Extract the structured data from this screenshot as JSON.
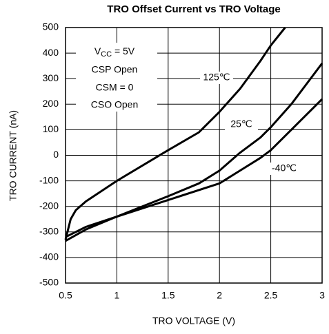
{
  "chart_data": {
    "type": "line",
    "title": "TRO Offset Current vs TRO Voltage",
    "x_label": "TRO VOLTAGE (V)",
    "y_label": "TRO CURRENT (nA)",
    "xlim": [
      0.5,
      3
    ],
    "xticks": [
      0.5,
      1,
      1.5,
      2,
      2.5,
      3
    ],
    "ylim": [
      -500,
      500
    ],
    "yticks": [
      -500,
      -400,
      -300,
      -200,
      -100,
      0,
      100,
      200,
      300,
      400,
      500
    ],
    "grid": true,
    "conditions": {
      "vcc": {
        "symbol": "V",
        "subscript": "CC",
        "value": " = 5V"
      },
      "lines": [
        "CSP Open",
        "CSM = 0",
        "CSO Open"
      ]
    },
    "series": [
      {
        "name": "125℃",
        "color": "#000000",
        "x": [
          0.5,
          0.55,
          0.6,
          0.7,
          1.0,
          1.5,
          1.8,
          2.0,
          2.2,
          2.4,
          2.5,
          2.64
        ],
        "values": [
          -330,
          -250,
          -215,
          -180,
          -100,
          20,
          90,
          170,
          260,
          370,
          430,
          500
        ]
      },
      {
        "name": "25℃",
        "color": "#000000",
        "x": [
          0.5,
          0.7,
          1.0,
          1.5,
          1.8,
          2.0,
          2.2,
          2.4,
          2.5,
          2.7,
          2.85,
          3.0
        ],
        "values": [
          -320,
          -280,
          -240,
          -160,
          -110,
          -60,
          10,
          70,
          110,
          200,
          280,
          360
        ]
      },
      {
        "name": "-40℃",
        "color": "#000000",
        "x": [
          0.5,
          0.7,
          1.0,
          1.5,
          2.0,
          2.2,
          2.4,
          2.5,
          2.7,
          2.85,
          3.0
        ],
        "values": [
          -335,
          -290,
          -240,
          -175,
          -110,
          -60,
          -10,
          20,
          100,
          160,
          220
        ]
      }
    ]
  }
}
